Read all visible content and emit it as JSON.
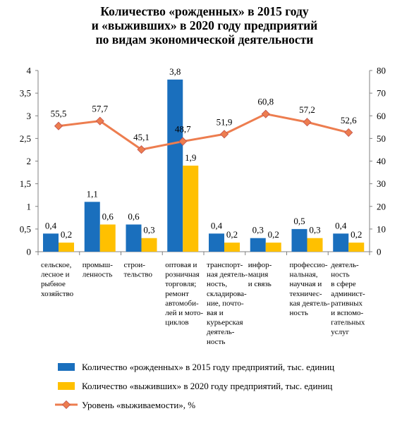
{
  "chart_data": {
    "type": "bar",
    "title": [
      "Количество «рожденных» в 2015 году",
      "и «выживших» в 2020 году предприятий",
      "по видам экономической деятельности"
    ],
    "categories": [
      [
        "сельское,",
        "лесное и",
        "рыбное",
        "хозяйство"
      ],
      [
        "промыш-",
        "ленность"
      ],
      [
        "строи-",
        "тельство"
      ],
      [
        "оптовая и",
        "розничная",
        "торговля;",
        "ремонт",
        "автомоби-",
        "лей и мото-",
        "циклов"
      ],
      [
        "транспорт-",
        "ная деятель-",
        "ность,",
        "складирова-",
        "ние, почто-",
        "вая и",
        "курьерская",
        "деятель-",
        "ность"
      ],
      [
        "инфор-",
        "мация",
        "и связь"
      ],
      [
        "профессио-",
        "нальная,",
        "научная и",
        "техничес-",
        "кая деятель-",
        "ность"
      ],
      [
        "деятель-",
        "ность",
        "в сфере",
        "админист-",
        "ративных",
        "и вспомо-",
        "гательных",
        "услуг"
      ]
    ],
    "series": [
      {
        "name": "Количество «рожденных» в 2015 году предприятий, тыс. единиц",
        "type": "bar",
        "axis": "left",
        "color": "#1a6fbd",
        "values": [
          0.4,
          1.1,
          0.6,
          3.8,
          0.4,
          0.3,
          0.5,
          0.4
        ],
        "labels": [
          "0,4",
          "1,1",
          "0,6",
          "3,8",
          "0,4",
          "0,3",
          "0,5",
          "0,4"
        ]
      },
      {
        "name": "Количество «выживших» в 2020 году предприятий, тыс. единиц",
        "type": "bar",
        "axis": "left",
        "color": "#ffc000",
        "values": [
          0.2,
          0.6,
          0.3,
          1.9,
          0.2,
          0.2,
          0.3,
          0.2
        ],
        "labels": [
          "0,2",
          "0,6",
          "0,3",
          "1,9",
          "0,2",
          "0,2",
          "0,3",
          "0,2"
        ]
      },
      {
        "name": "Уровень «выживаемости», %",
        "type": "line",
        "axis": "right",
        "color": "#ed7d4f",
        "values": [
          55.5,
          57.7,
          45.1,
          48.7,
          51.9,
          60.8,
          57.2,
          52.6
        ],
        "labels": [
          "55,5",
          "57,7",
          "45,1",
          "48,7",
          "51,9",
          "60,8",
          "57,2",
          "52,6"
        ]
      }
    ],
    "y_left": {
      "min": 0,
      "max": 4,
      "ticks": [
        0,
        0.5,
        1,
        1.5,
        2,
        2.5,
        3,
        3.5,
        4
      ],
      "tick_labels": [
        "0",
        "0,5",
        "1",
        "1,5",
        "2",
        "2,5",
        "3",
        "3,5",
        "4"
      ]
    },
    "y_right": {
      "min": 0,
      "max": 80,
      "ticks": [
        0,
        10,
        20,
        30,
        40,
        50,
        60,
        70,
        80
      ],
      "tick_labels": [
        "0",
        "10",
        "20",
        "30",
        "40",
        "50",
        "60",
        "70",
        "80"
      ]
    },
    "grid": false,
    "legend_position": "bottom"
  }
}
